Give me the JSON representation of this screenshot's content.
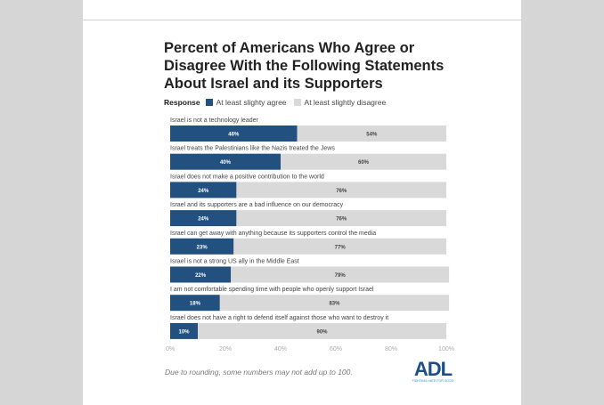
{
  "chart_data": {
    "type": "bar",
    "stacked": true,
    "orientation": "horizontal",
    "title": "Percent of Americans Who Agree or Disagree With the Following Statements About Israel and its Supporters",
    "legend_title": "Response",
    "categories": [
      "Israel is not a technology leader",
      "Israel treats the Palestinians like the Nazis treated the Jews",
      "Israel does not make a positive contribution to the world",
      "Israel and its supporters are a bad influence on our democracy",
      "Israel can get away with anything because its supporters control the media",
      "Israel is not a strong US ally in the Middle East",
      "I am not comfortable spending time with people who openly support Israel",
      "Israel does not have a right to defend itself against those who want to destroy it"
    ],
    "series": [
      {
        "name": "At least slighty agree",
        "color": "#22507f",
        "values": [
          46,
          40,
          24,
          24,
          23,
          22,
          18,
          10
        ]
      },
      {
        "name": "At least slightly disagree",
        "color": "#d9d9d9",
        "values": [
          54,
          60,
          76,
          76,
          77,
          79,
          83,
          90
        ]
      }
    ],
    "xlim": [
      0,
      100
    ],
    "xticks": [
      "0%",
      "20%",
      "40%",
      "60%",
      "80%",
      "100%"
    ],
    "grid": false,
    "legend_placement": "top-left",
    "note": "Due to rounding, some numbers may not add up to 100."
  },
  "logo": {
    "text": "ADL",
    "tagline": "FIGHTING HATE FOR GOOD"
  }
}
